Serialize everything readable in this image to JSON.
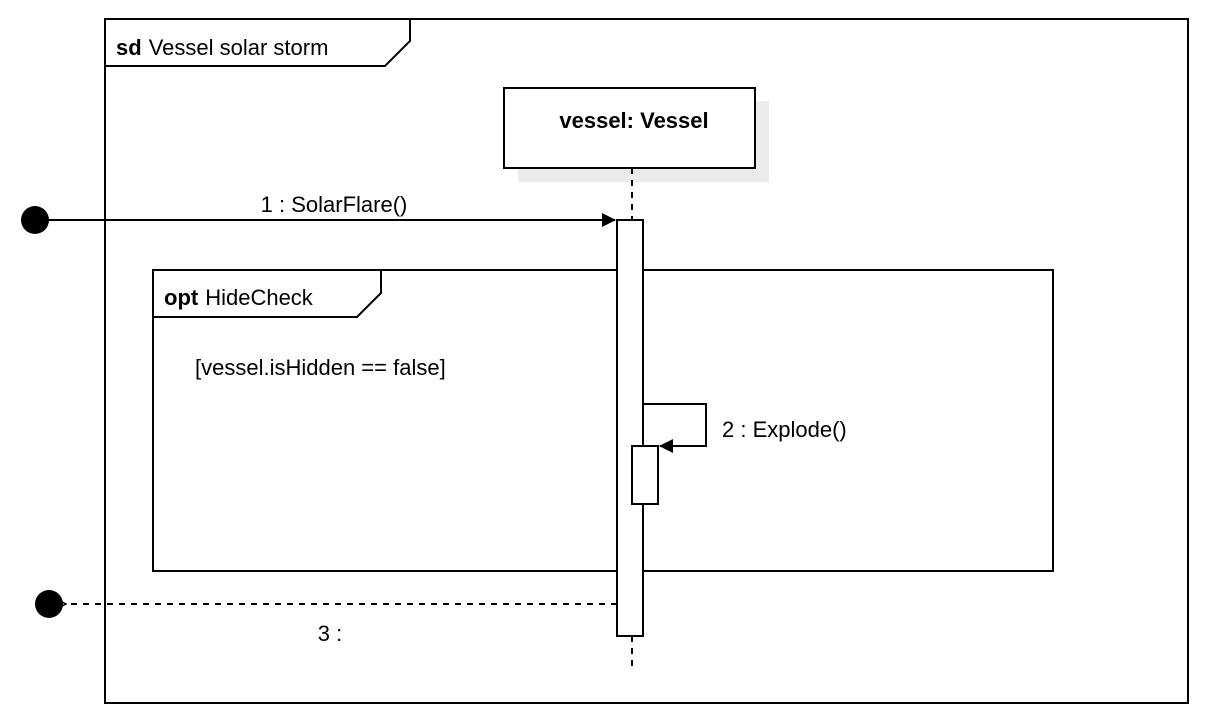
{
  "frame": {
    "keyword": "sd",
    "name": "Vessel solar storm"
  },
  "lifeline": {
    "label": "vessel: Vessel"
  },
  "fragment": {
    "operator": "opt",
    "name": "HideCheck",
    "guard": "[vessel.isHidden == false]"
  },
  "messages": [
    {
      "label": "1 : SolarFlare()",
      "kind": "found-synchronous"
    },
    {
      "label": "2 : Explode()",
      "kind": "self-synchronous"
    },
    {
      "label": "3 :",
      "kind": "lost-reply"
    }
  ]
}
